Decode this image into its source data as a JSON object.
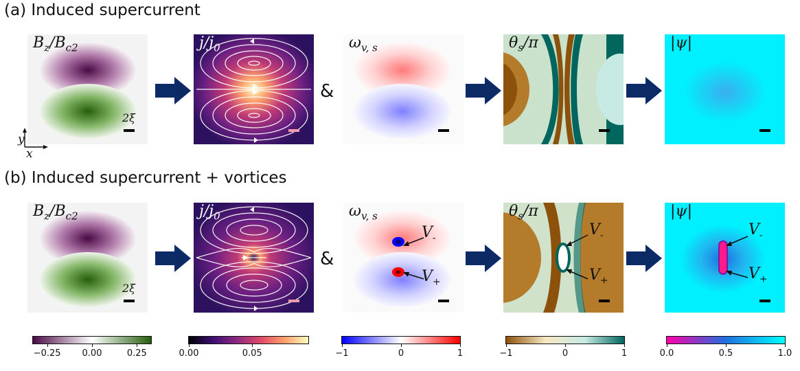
{
  "rows": [
    {
      "title": "(a)  Induced supercurrent"
    },
    {
      "title": "(b) Induced supercurrent + vortices"
    }
  ],
  "panel_labels": {
    "bz": "B_z/B_c2",
    "j": "j/j_0",
    "omega": "ω_v,s",
    "theta": "θ_s/π",
    "psi": "|ψ|"
  },
  "ampersand": "&",
  "scale_label": "2ξ",
  "axes": {
    "x": "x",
    "y": "y"
  },
  "vortex_labels": {
    "minus": "V",
    "minus_sub": "-",
    "plus": "V",
    "plus_sub": "+"
  },
  "colorbars": [
    {
      "name": "bz",
      "ticks": [
        "−0.25",
        "0.00",
        "0.25"
      ],
      "colors": [
        "#4b0a46",
        "#ffffff",
        "#265e0c"
      ]
    },
    {
      "name": "j",
      "ticks": [
        "0.00",
        "0.05"
      ],
      "colors": [
        "#000004",
        "#3b0f70",
        "#8c2981",
        "#de4968",
        "#fe9f6d",
        "#fcfdbf"
      ]
    },
    {
      "name": "omega",
      "ticks": [
        "−1",
        "0",
        "1"
      ],
      "colors": [
        "#0000ff",
        "#ffffff",
        "#ff0000"
      ]
    },
    {
      "name": "theta",
      "ticks": [
        "−1",
        "0",
        "1"
      ],
      "colors": [
        "#8c510a",
        "#f6e8c3",
        "#c7eae5",
        "#01665e"
      ]
    },
    {
      "name": "psi",
      "ticks": [
        "0.0",
        "0.5",
        "1.0"
      ],
      "colors": [
        "#ff00aa",
        "#1f6fe0",
        "#00ffff"
      ]
    }
  ]
}
